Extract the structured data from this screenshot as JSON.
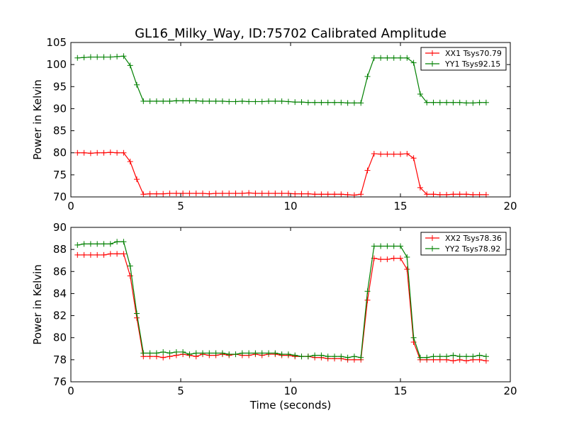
{
  "figure": {
    "title": "GL16_Milky_Way, ID:75702 Calibrated Amplitude"
  },
  "chart_data": [
    {
      "type": "line",
      "xlabel": "",
      "ylabel": "Power in Kelvin",
      "xlim": [
        0,
        20
      ],
      "ylim": [
        70,
        105
      ],
      "xticks": [
        0,
        5,
        10,
        15,
        20
      ],
      "yticks": [
        70,
        75,
        80,
        85,
        90,
        95,
        100,
        105
      ],
      "grid": false,
      "legend_position": "top-right",
      "x": [
        0.3,
        0.6,
        0.9,
        1.2,
        1.5,
        1.8,
        2.1,
        2.4,
        2.7,
        3.0,
        3.3,
        3.6,
        3.9,
        4.2,
        4.5,
        4.8,
        5.1,
        5.4,
        5.7,
        6.0,
        6.3,
        6.6,
        6.9,
        7.2,
        7.5,
        7.8,
        8.1,
        8.4,
        8.7,
        9.0,
        9.3,
        9.6,
        9.9,
        10.2,
        10.5,
        10.8,
        11.1,
        11.4,
        11.7,
        12.0,
        12.3,
        12.6,
        12.9,
        13.2,
        13.5,
        13.8,
        14.1,
        14.4,
        14.7,
        15.0,
        15.3,
        15.6,
        15.9,
        16.2,
        16.5,
        16.8,
        17.1,
        17.4,
        17.7,
        18.0,
        18.3,
        18.6,
        18.9
      ],
      "series": [
        {
          "name": "XX1 Tsys70.79",
          "color": "#ff0000",
          "values": [
            80.0,
            80.0,
            79.9,
            80.0,
            80.0,
            80.1,
            80.0,
            80.0,
            78.0,
            74.0,
            70.6,
            70.7,
            70.7,
            70.7,
            70.8,
            70.8,
            70.8,
            70.8,
            70.8,
            70.8,
            70.7,
            70.8,
            70.8,
            70.8,
            70.8,
            70.8,
            70.9,
            70.8,
            70.8,
            70.8,
            70.8,
            70.8,
            70.8,
            70.7,
            70.7,
            70.7,
            70.6,
            70.6,
            70.6,
            70.6,
            70.6,
            70.5,
            70.4,
            70.6,
            76.0,
            79.8,
            79.7,
            79.7,
            79.7,
            79.7,
            79.8,
            78.8,
            72.1,
            70.6,
            70.6,
            70.5,
            70.5,
            70.6,
            70.6,
            70.6,
            70.5,
            70.5,
            70.5
          ]
        },
        {
          "name": "YY1 Tsys92.15",
          "color": "#008000",
          "values": [
            101.5,
            101.6,
            101.7,
            101.7,
            101.7,
            101.7,
            101.8,
            101.9,
            99.8,
            95.4,
            91.7,
            91.7,
            91.7,
            91.7,
            91.7,
            91.8,
            91.8,
            91.8,
            91.8,
            91.7,
            91.7,
            91.7,
            91.7,
            91.6,
            91.6,
            91.7,
            91.6,
            91.6,
            91.6,
            91.7,
            91.7,
            91.7,
            91.6,
            91.5,
            91.5,
            91.4,
            91.4,
            91.4,
            91.4,
            91.4,
            91.4,
            91.3,
            91.3,
            91.3,
            97.3,
            101.5,
            101.5,
            101.5,
            101.5,
            101.5,
            101.5,
            100.4,
            93.3,
            91.4,
            91.4,
            91.4,
            91.4,
            91.4,
            91.4,
            91.3,
            91.3,
            91.4,
            91.4
          ]
        }
      ]
    },
    {
      "type": "line",
      "xlabel": "Time (seconds)",
      "ylabel": "Power in Kelvin",
      "xlim": [
        0,
        20
      ],
      "ylim": [
        76,
        90
      ],
      "xticks": [
        0,
        5,
        10,
        15,
        20
      ],
      "yticks": [
        76,
        78,
        80,
        82,
        84,
        86,
        88,
        90
      ],
      "grid": false,
      "legend_position": "top-right",
      "x": [
        0.3,
        0.6,
        0.9,
        1.2,
        1.5,
        1.8,
        2.1,
        2.4,
        2.7,
        3.0,
        3.3,
        3.6,
        3.9,
        4.2,
        4.5,
        4.8,
        5.1,
        5.4,
        5.7,
        6.0,
        6.3,
        6.6,
        6.9,
        7.2,
        7.5,
        7.8,
        8.1,
        8.4,
        8.7,
        9.0,
        9.3,
        9.6,
        9.9,
        10.2,
        10.5,
        10.8,
        11.1,
        11.4,
        11.7,
        12.0,
        12.3,
        12.6,
        12.9,
        13.2,
        13.5,
        13.8,
        14.1,
        14.4,
        14.7,
        15.0,
        15.3,
        15.6,
        15.9,
        16.2,
        16.5,
        16.8,
        17.1,
        17.4,
        17.7,
        18.0,
        18.3,
        18.6,
        18.9
      ],
      "series": [
        {
          "name": "XX2 Tsys78.36",
          "color": "#ff0000",
          "values": [
            87.5,
            87.5,
            87.5,
            87.5,
            87.5,
            87.6,
            87.6,
            87.6,
            85.6,
            81.8,
            78.3,
            78.3,
            78.3,
            78.2,
            78.3,
            78.4,
            78.5,
            78.4,
            78.3,
            78.5,
            78.4,
            78.4,
            78.5,
            78.4,
            78.5,
            78.4,
            78.4,
            78.5,
            78.4,
            78.5,
            78.5,
            78.4,
            78.4,
            78.3,
            78.3,
            78.3,
            78.2,
            78.2,
            78.1,
            78.1,
            78.1,
            78.0,
            78.0,
            78.0,
            83.4,
            87.2,
            87.1,
            87.1,
            87.2,
            87.2,
            86.2,
            79.6,
            78.0,
            78.0,
            78.0,
            78.0,
            78.0,
            77.9,
            78.0,
            77.9,
            78.0,
            78.0,
            77.9
          ]
        },
        {
          "name": "YY2 Tsys78.92",
          "color": "#008000",
          "values": [
            88.4,
            88.5,
            88.5,
            88.5,
            88.5,
            88.5,
            88.7,
            88.7,
            86.5,
            82.2,
            78.6,
            78.6,
            78.6,
            78.7,
            78.6,
            78.7,
            78.7,
            78.5,
            78.6,
            78.6,
            78.6,
            78.6,
            78.6,
            78.5,
            78.5,
            78.6,
            78.6,
            78.6,
            78.6,
            78.6,
            78.6,
            78.5,
            78.5,
            78.4,
            78.3,
            78.3,
            78.4,
            78.4,
            78.3,
            78.3,
            78.3,
            78.2,
            78.3,
            78.2,
            84.2,
            88.3,
            88.3,
            88.3,
            88.3,
            88.3,
            87.3,
            80.0,
            78.2,
            78.2,
            78.3,
            78.3,
            78.3,
            78.4,
            78.3,
            78.3,
            78.3,
            78.4,
            78.3
          ]
        }
      ]
    }
  ]
}
